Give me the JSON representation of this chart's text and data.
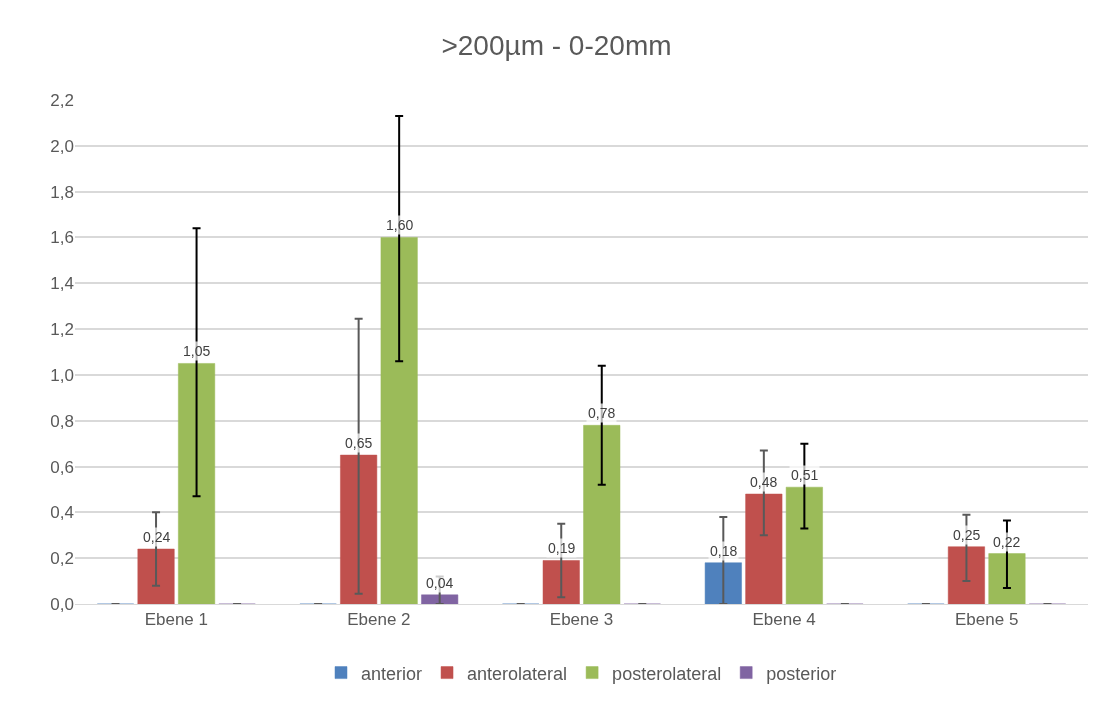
{
  "chart_data": {
    "type": "bar",
    "title": ">200µm - 0-20mm",
    "categories": [
      "Ebene 1",
      "Ebene 2",
      "Ebene 3",
      "Ebene 4",
      "Ebene 5"
    ],
    "series": [
      {
        "name": "anterior",
        "color": "#4f81bd",
        "values": [
          0,
          0,
          0,
          0.18,
          0
        ],
        "value_labels": [
          null,
          null,
          null,
          "0,18",
          null
        ],
        "errors": [
          null,
          null,
          null,
          [
            0,
            0.38
          ],
          null
        ]
      },
      {
        "name": "anterolateral",
        "color": "#c0504d",
        "values": [
          0.24,
          0.65,
          0.19,
          0.48,
          0.25
        ],
        "value_labels": [
          "0,24",
          "0,65",
          "0,19",
          "0,48",
          "0,25"
        ],
        "errors": [
          [
            0.08,
            0.4
          ],
          [
            0.045,
            1.245
          ],
          [
            0.03,
            0.35
          ],
          [
            0.3,
            0.67
          ],
          [
            0.1,
            0.39
          ]
        ]
      },
      {
        "name": "posterolateral",
        "color": "#9bbb59",
        "values": [
          1.05,
          1.6,
          0.78,
          0.51,
          0.22
        ],
        "value_labels": [
          "1,05",
          "1,60",
          "0,78",
          "0,51",
          "0,22"
        ],
        "errors": [
          [
            0.47,
            1.64
          ],
          [
            1.06,
            2.13
          ],
          [
            0.52,
            1.04
          ],
          [
            0.33,
            0.7
          ],
          [
            0.07,
            0.365
          ]
        ]
      },
      {
        "name": "posterior",
        "color": "#8064a2",
        "values": [
          0,
          0.04,
          0,
          0,
          0
        ],
        "value_labels": [
          null,
          "0,04",
          null,
          null,
          null
        ],
        "errors": [
          null,
          [
            0,
            0.12
          ],
          null,
          null,
          null
        ]
      }
    ],
    "ylim": [
      0,
      2.2
    ],
    "yticks": [
      {
        "value": 0,
        "label": "0,0"
      },
      {
        "value": 0.2,
        "label": "0,2"
      },
      {
        "value": 0.4,
        "label": "0,4"
      },
      {
        "value": 0.6,
        "label": "0,6"
      },
      {
        "value": 0.8,
        "label": "0,8"
      },
      {
        "value": 1.0,
        "label": "1,0"
      },
      {
        "value": 1.2,
        "label": "1,2"
      },
      {
        "value": 1.4,
        "label": "1,4"
      },
      {
        "value": 1.6,
        "label": "1,6"
      },
      {
        "value": 1.8,
        "label": "1,8"
      },
      {
        "value": 2.0,
        "label": "2,0"
      },
      {
        "value": 2.2,
        "label": "2,2"
      }
    ],
    "grid": "y",
    "legend": "bottom"
  }
}
